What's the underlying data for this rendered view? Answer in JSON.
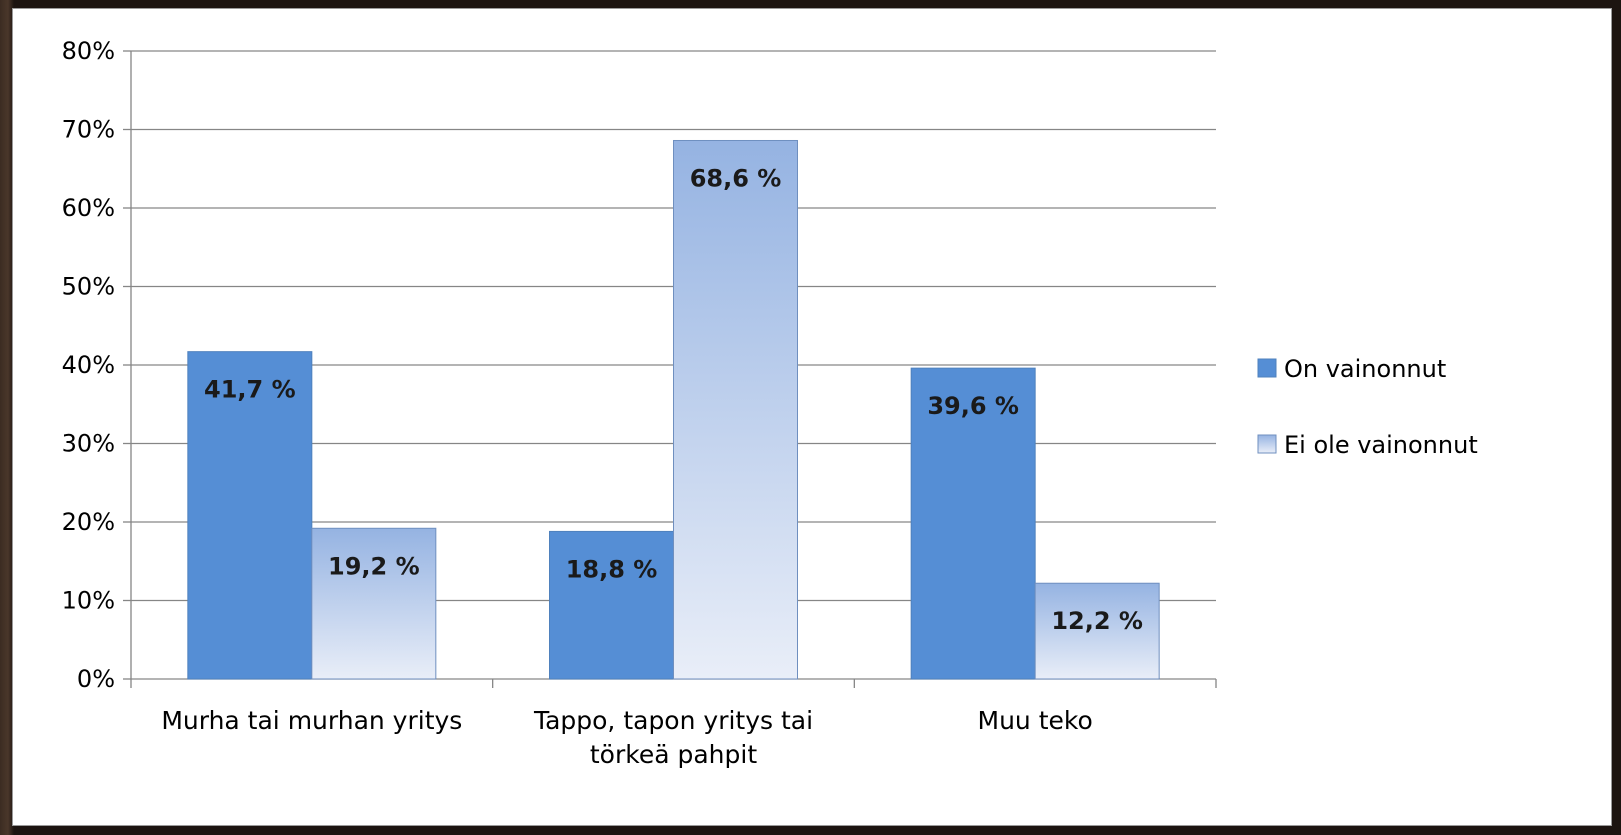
{
  "chart_data": {
    "type": "bar",
    "categories": [
      [
        "Murha tai murhan yritys"
      ],
      [
        "Tappo, tapon yritys tai",
        "törkeä pahpit"
      ],
      [
        "Muu teko"
      ]
    ],
    "series": [
      {
        "name": "On vainonnut",
        "values": [
          41.7,
          18.8,
          39.6
        ],
        "labels": [
          "41,7 %",
          "18,8 %",
          "39,6 %"
        ],
        "color": "#558ed5"
      },
      {
        "name": "Ei ole vainonnut",
        "values": [
          19.2,
          68.6,
          12.2
        ],
        "labels": [
          "19,2 %",
          "68,6 %",
          "12,2 %"
        ],
        "color_top": "#95b3e2",
        "color_bottom": "#e9eef8"
      }
    ],
    "yticks": [
      "0%",
      "10%",
      "20%",
      "30%",
      "40%",
      "50%",
      "60%",
      "70%",
      "80%"
    ],
    "ylim": [
      0,
      80
    ],
    "grid": true,
    "legend_position": "right"
  }
}
